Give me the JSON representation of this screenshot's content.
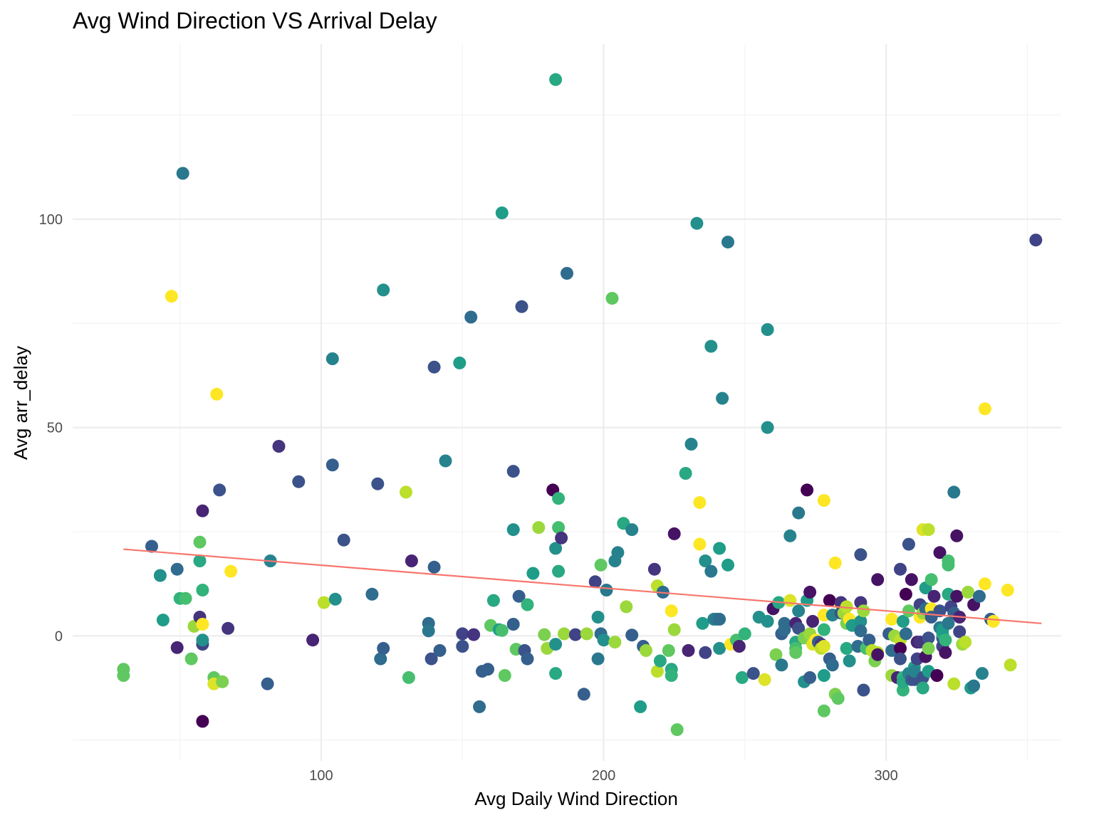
{
  "chart_data": {
    "type": "scatter",
    "title": "Avg Wind Direction VS Arrival Delay",
    "xlabel": "Avg Daily Wind Direction",
    "ylabel": "Avg arr_delay",
    "xlim": [
      12,
      362
    ],
    "ylim": [
      -30,
      142
    ],
    "x_ticks": [
      100,
      200,
      300
    ],
    "x_tick_labels": [
      "100",
      "200",
      "300"
    ],
    "y_ticks": [
      0,
      50,
      100
    ],
    "y_tick_labels": [
      "0",
      "50",
      "100"
    ],
    "grid": true,
    "legend": "none",
    "point_color_scale": "viridis",
    "trend_color": "#F8766D",
    "trend_line": {
      "x": [
        30,
        355
      ],
      "y": [
        20.8,
        3.0
      ]
    },
    "points": [
      [
        30,
        -8,
        0.75
      ],
      [
        30,
        -9.5,
        0.75
      ],
      [
        40,
        21.5,
        0.3
      ],
      [
        43,
        14.5,
        0.5
      ],
      [
        44,
        3.8,
        0.55
      ],
      [
        47,
        81.5,
        1.0
      ],
      [
        49,
        16,
        0.35
      ],
      [
        50,
        9,
        0.65
      ],
      [
        49,
        -2.8,
        0.1
      ],
      [
        51,
        111,
        0.4
      ],
      [
        52,
        9,
        0.7
      ],
      [
        54,
        -5.5,
        0.75
      ],
      [
        55,
        2.3,
        0.85
      ],
      [
        57,
        18,
        0.6
      ],
      [
        57,
        22.5,
        0.75
      ],
      [
        57,
        4.5,
        0.15
      ],
      [
        58,
        -2,
        0.2
      ],
      [
        58,
        2.8,
        1.0
      ],
      [
        58,
        -1,
        0.5
      ],
      [
        58,
        -20.5,
        0.0
      ],
      [
        58,
        11,
        0.65
      ],
      [
        58,
        30,
        0.1
      ],
      [
        62,
        -10,
        0.75
      ],
      [
        62,
        -11.5,
        0.95
      ],
      [
        63,
        58,
        1.0
      ],
      [
        64,
        35,
        0.25
      ],
      [
        65,
        -11,
        0.8
      ],
      [
        67,
        1.8,
        0.15
      ],
      [
        68,
        15.5,
        1.0
      ],
      [
        82,
        18,
        0.45
      ],
      [
        81,
        -11.5,
        0.3
      ],
      [
        85,
        45.5,
        0.15
      ],
      [
        92,
        37,
        0.25
      ],
      [
        97,
        -1,
        0.1
      ],
      [
        101,
        8,
        0.9
      ],
      [
        104,
        41,
        0.3
      ],
      [
        105,
        8.8,
        0.5
      ],
      [
        104,
        66.5,
        0.45
      ],
      [
        108,
        23,
        0.25
      ],
      [
        118,
        10,
        0.35
      ],
      [
        120,
        36.5,
        0.25
      ],
      [
        121,
        -5.5,
        0.35
      ],
      [
        122,
        -3,
        0.3
      ],
      [
        122,
        83,
        0.5
      ],
      [
        130,
        34.5,
        0.9
      ],
      [
        131,
        -10,
        0.7
      ],
      [
        132,
        18,
        0.1
      ],
      [
        138,
        3,
        0.35
      ],
      [
        138,
        1.2,
        0.4
      ],
      [
        139,
        -5.5,
        0.25
      ],
      [
        140,
        64.5,
        0.25
      ],
      [
        140,
        16.5,
        0.3
      ],
      [
        142,
        -3.5,
        0.3
      ],
      [
        144,
        42,
        0.45
      ],
      [
        149,
        65.5,
        0.55
      ],
      [
        150,
        0.5,
        0.2
      ],
      [
        150,
        -2.5,
        0.25
      ],
      [
        153,
        76.5,
        0.35
      ],
      [
        154,
        0.3,
        0.15
      ],
      [
        156,
        -17,
        0.35
      ],
      [
        157,
        -8.5,
        0.3
      ],
      [
        159,
        -8,
        0.3
      ],
      [
        160,
        2.5,
        0.75
      ],
      [
        161,
        8.5,
        0.6
      ],
      [
        163,
        1.5,
        0.55
      ],
      [
        164,
        1.3,
        0.7
      ],
      [
        164,
        101.5,
        0.55
      ],
      [
        165,
        -9.5,
        0.75
      ],
      [
        168,
        25.5,
        0.5
      ],
      [
        168,
        39.5,
        0.25
      ],
      [
        168,
        2.8,
        0.3
      ],
      [
        169,
        -3.2,
        0.75
      ],
      [
        170,
        9.5,
        0.3
      ],
      [
        171,
        79,
        0.25
      ],
      [
        172,
        -3.5,
        0.25
      ],
      [
        173,
        -5.5,
        0.3
      ],
      [
        173,
        7.5,
        0.65
      ],
      [
        175,
        15,
        0.55
      ],
      [
        177,
        26,
        0.85
      ],
      [
        179,
        0.3,
        0.8
      ],
      [
        180,
        -3,
        0.85
      ],
      [
        182,
        35,
        0.0
      ],
      [
        183,
        133.5,
        0.6
      ],
      [
        183,
        21,
        0.5
      ],
      [
        184,
        33,
        0.65
      ],
      [
        184,
        26,
        0.7
      ],
      [
        183,
        -2,
        0.5
      ],
      [
        184,
        15.5,
        0.6
      ],
      [
        185,
        23.5,
        0.15
      ],
      [
        183,
        -9,
        0.6
      ],
      [
        186,
        0.5,
        0.85
      ],
      [
        187,
        87,
        0.35
      ],
      [
        190,
        0.3,
        0.2
      ],
      [
        193,
        -14,
        0.3
      ],
      [
        194,
        0.5,
        0.85
      ],
      [
        197,
        13,
        0.2
      ],
      [
        198,
        -5.5,
        0.4
      ],
      [
        198,
        4.5,
        0.5
      ],
      [
        199,
        17,
        0.75
      ],
      [
        199,
        0.5,
        0.35
      ],
      [
        200,
        -1,
        0.5
      ],
      [
        201,
        11,
        0.4
      ],
      [
        203,
        81,
        0.75
      ],
      [
        204,
        18,
        0.45
      ],
      [
        204,
        -1.5,
        0.85
      ],
      [
        205,
        20,
        0.45
      ],
      [
        207,
        27,
        0.6
      ],
      [
        208,
        7,
        0.85
      ],
      [
        210,
        25.5,
        0.45
      ],
      [
        210,
        0.2,
        0.3
      ],
      [
        213,
        -17,
        0.55
      ],
      [
        214,
        -2.5,
        0.3
      ],
      [
        215,
        -3.5,
        0.85
      ],
      [
        218,
        16,
        0.15
      ],
      [
        219,
        12,
        0.9
      ],
      [
        219,
        -8.5,
        0.9
      ],
      [
        220,
        -6,
        0.6
      ],
      [
        221,
        10.5,
        0.35
      ],
      [
        223,
        -3.5,
        0.75
      ],
      [
        224,
        -8,
        0.6
      ],
      [
        224,
        -9.5,
        0.65
      ],
      [
        224,
        6,
        1.0
      ],
      [
        225,
        24.5,
        0.05
      ],
      [
        225,
        1.5,
        0.85
      ],
      [
        226,
        -22.5,
        0.75
      ],
      [
        229,
        39,
        0.6
      ],
      [
        230,
        -3.5,
        0.1
      ],
      [
        231,
        46,
        0.45
      ],
      [
        233,
        99,
        0.5
      ],
      [
        234,
        32,
        1.0
      ],
      [
        234,
        22,
        1.0
      ],
      [
        235,
        3,
        0.55
      ],
      [
        236,
        18,
        0.5
      ],
      [
        236,
        -4,
        0.2
      ],
      [
        238,
        69.5,
        0.5
      ],
      [
        238,
        15.5,
        0.4
      ],
      [
        239,
        4,
        0.45
      ],
      [
        240,
        4,
        0.4
      ],
      [
        241,
        4,
        0.35
      ],
      [
        241,
        -3,
        0.5
      ],
      [
        241,
        21,
        0.55
      ],
      [
        242,
        57,
        0.45
      ],
      [
        244,
        94.5,
        0.4
      ],
      [
        244,
        17,
        0.55
      ],
      [
        245,
        -2,
        1.0
      ],
      [
        247,
        -1,
        0.7
      ],
      [
        248,
        -2.5,
        0.1
      ],
      [
        249,
        -10,
        0.6
      ],
      [
        250,
        0.5,
        0.65
      ],
      [
        253,
        -9,
        0.25
      ],
      [
        255,
        4.5,
        0.5
      ],
      [
        257,
        -10.5,
        0.95
      ],
      [
        258,
        50,
        0.5
      ],
      [
        258,
        73.5,
        0.5
      ],
      [
        258,
        3.5,
        0.5
      ],
      [
        260,
        6.5,
        0.05
      ],
      [
        261,
        -4.5,
        0.8
      ],
      [
        262,
        8,
        0.6
      ],
      [
        263,
        -7,
        0.4
      ],
      [
        263,
        0.5,
        0.3
      ],
      [
        264,
        3,
        0.35
      ],
      [
        264,
        1.5,
        0.35
      ],
      [
        266,
        24,
        0.45
      ],
      [
        266,
        8.5,
        0.95
      ],
      [
        268,
        -1.5,
        0.6
      ],
      [
        268,
        -3,
        0.7
      ],
      [
        268,
        -4,
        0.75
      ],
      [
        268,
        3,
        0.1
      ],
      [
        269,
        29.5,
        0.4
      ],
      [
        269,
        6,
        0.45
      ],
      [
        269,
        1.8,
        0.25
      ],
      [
        271,
        -11,
        0.5
      ],
      [
        271,
        -0.5,
        0.8
      ],
      [
        272,
        35,
        0.0
      ],
      [
        272,
        8.5,
        0.55
      ],
      [
        273,
        10.5,
        0.05
      ],
      [
        273,
        0.5,
        0.85
      ],
      [
        273,
        -10,
        0.3
      ],
      [
        274,
        3.5,
        0.1
      ],
      [
        274,
        -2,
        0.95
      ],
      [
        275,
        -1,
        1.0
      ],
      [
        276,
        -1.5,
        0.3
      ],
      [
        277,
        -2,
        0.15
      ],
      [
        277,
        -3,
        0.9
      ],
      [
        278,
        -9.5,
        0.55
      ],
      [
        278,
        -2.5,
        0.95
      ],
      [
        278,
        -18,
        0.75
      ],
      [
        278,
        32.5,
        1.0
      ],
      [
        278,
        5,
        1.0
      ],
      [
        278,
        1.5,
        0.65
      ],
      [
        280,
        8.5,
        0.0
      ],
      [
        280,
        -5.5,
        0.3
      ],
      [
        281,
        -7,
        0.35
      ],
      [
        281,
        5,
        0.45
      ],
      [
        282,
        17.5,
        1.0
      ],
      [
        282,
        -14,
        0.8
      ],
      [
        283,
        -15,
        0.75
      ],
      [
        284,
        7.5,
        1.0
      ],
      [
        284,
        8,
        0.15
      ],
      [
        284,
        5.5,
        0.25
      ],
      [
        285,
        5.5,
        0.85
      ],
      [
        286,
        7,
        0.9
      ],
      [
        286,
        3,
        0.8
      ],
      [
        286,
        -3,
        0.6
      ],
      [
        287,
        4,
        1.0
      ],
      [
        287,
        -6,
        0.5
      ],
      [
        288,
        2.5,
        0.55
      ],
      [
        290,
        -2.5,
        0.35
      ],
      [
        291,
        3.5,
        0.5
      ],
      [
        291,
        19.5,
        0.25
      ],
      [
        291,
        8,
        0.15
      ],
      [
        291,
        1.2,
        0.35
      ],
      [
        292,
        6,
        0.85
      ],
      [
        292,
        -13,
        0.25
      ],
      [
        293,
        -3,
        0.7
      ],
      [
        294,
        -1,
        0.3
      ],
      [
        295,
        -3.5,
        0.9
      ],
      [
        296,
        -6,
        0.8
      ],
      [
        297,
        -4,
        0.9
      ],
      [
        297,
        -4.5,
        0.05
      ],
      [
        297,
        13.5,
        0.05
      ],
      [
        301,
        0.5,
        0.3
      ],
      [
        302,
        -3.5,
        0.35
      ],
      [
        302,
        4,
        1.0
      ],
      [
        302,
        -9.5,
        0.85
      ],
      [
        303,
        0,
        0.85
      ],
      [
        304,
        -10,
        0.1
      ],
      [
        305,
        -1,
        0.9
      ],
      [
        305,
        16,
        0.2
      ],
      [
        305,
        -3,
        0.0
      ],
      [
        305,
        -5.5,
        0.25
      ],
      [
        306,
        -13,
        0.65
      ],
      [
        306,
        3.5,
        0.55
      ],
      [
        306,
        -10,
        0.65
      ],
      [
        306,
        -11,
        0.6
      ],
      [
        307,
        10,
        0.0
      ],
      [
        307,
        0.5,
        0.35
      ],
      [
        308,
        6,
        0.75
      ],
      [
        308,
        22,
        0.25
      ],
      [
        308,
        -9,
        0.45
      ],
      [
        309,
        13.5,
        0.05
      ],
      [
        309,
        -10.5,
        0.3
      ],
      [
        310,
        -10.5,
        0.25
      ],
      [
        310,
        -7.5,
        0.55
      ],
      [
        310,
        -8.5,
        0.45
      ],
      [
        311,
        -5.5,
        0.2
      ],
      [
        311,
        -1.5,
        0.1
      ],
      [
        312,
        7.5,
        0.2
      ],
      [
        312,
        4.5,
        1.0
      ],
      [
        312,
        -1.5,
        0.15
      ],
      [
        313,
        -10,
        0.25
      ],
      [
        313,
        5.5,
        0.85
      ],
      [
        313,
        25.5,
        0.95
      ],
      [
        313,
        -12.5,
        0.6
      ],
      [
        314,
        -5,
        0.05
      ],
      [
        314,
        11.5,
        0.55
      ],
      [
        314,
        6.5,
        0.35
      ],
      [
        315,
        25.5,
        0.9
      ],
      [
        315,
        -8.5,
        0.55
      ],
      [
        315,
        -0.5,
        0.25
      ],
      [
        315,
        -3,
        0.8
      ],
      [
        316,
        6.5,
        1.0
      ],
      [
        316,
        4.5,
        0.3
      ],
      [
        316,
        13.5,
        0.7
      ],
      [
        317,
        9.5,
        0.1
      ],
      [
        318,
        -9.5,
        0.0
      ],
      [
        319,
        2,
        0.4
      ],
      [
        319,
        20,
        0.05
      ],
      [
        319,
        6,
        0.25
      ],
      [
        320,
        -0.5,
        0.25
      ],
      [
        320,
        0.5,
        0.6
      ],
      [
        320,
        -2.5,
        0.2
      ],
      [
        320,
        1.5,
        0.55
      ],
      [
        321,
        -4,
        0.05
      ],
      [
        321,
        -1,
        0.65
      ],
      [
        322,
        10,
        0.6
      ],
      [
        322,
        18,
        0.7
      ],
      [
        322,
        17,
        0.7
      ],
      [
        322,
        3,
        0.4
      ],
      [
        323,
        7,
        0.2
      ],
      [
        324,
        5.5,
        0.3
      ],
      [
        324,
        34.5,
        0.4
      ],
      [
        324,
        -11.5,
        0.9
      ],
      [
        325,
        24,
        0.05
      ],
      [
        325,
        9.5,
        0.05
      ],
      [
        326,
        1,
        0.2
      ],
      [
        326,
        4.5,
        0.1
      ],
      [
        327,
        -2,
        0.85
      ],
      [
        328,
        -1.5,
        0.9
      ],
      [
        329,
        10.5,
        0.85
      ],
      [
        330,
        -12.5,
        0.55
      ],
      [
        331,
        -12,
        0.4
      ],
      [
        331,
        7.5,
        0.05
      ],
      [
        333,
        9.5,
        0.35
      ],
      [
        334,
        -9,
        0.45
      ],
      [
        335,
        54.5,
        1.0
      ],
      [
        335,
        12.5,
        1.0
      ],
      [
        337,
        4,
        0.3
      ],
      [
        338,
        3.5,
        1.0
      ],
      [
        343,
        11,
        1.0
      ],
      [
        344,
        -7,
        0.9
      ],
      [
        353,
        95,
        0.2
      ]
    ]
  }
}
